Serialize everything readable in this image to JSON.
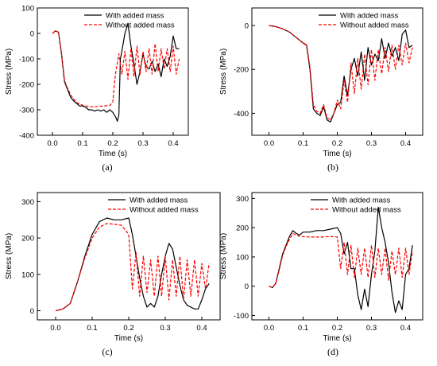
{
  "legend": {
    "with_label": "With added mass",
    "without_label": "Without added mass"
  },
  "colors": {
    "with": "#000000",
    "without": "#ff0000",
    "axis": "#000000"
  },
  "chart_data": [
    {
      "type": "line",
      "caption": "(a)",
      "xlabel": "Time (s)",
      "ylabel": "Stress (MPa)",
      "xlim": [
        -0.05,
        0.45
      ],
      "ylim": [
        -400,
        100
      ],
      "xticks": [
        0.0,
        0.1,
        0.2,
        0.3,
        0.4
      ],
      "xtick_labels": [
        "0.0",
        "0.1",
        "0.2",
        "0.3",
        "0.4"
      ],
      "yticks": [
        -400,
        -300,
        -200,
        -100,
        0,
        100
      ],
      "ytick_labels": [
        "-400",
        "-300",
        "-200",
        "-100",
        "0",
        "100"
      ],
      "legend_position": "top-right",
      "grid": false,
      "series": [
        {
          "name": "With added mass",
          "style": "solid",
          "x": [
            0.0,
            0.01,
            0.02,
            0.03,
            0.04,
            0.05,
            0.06,
            0.07,
            0.08,
            0.09,
            0.1,
            0.11,
            0.12,
            0.13,
            0.14,
            0.15,
            0.16,
            0.17,
            0.18,
            0.19,
            0.2,
            0.21,
            0.215,
            0.22,
            0.225,
            0.23,
            0.24,
            0.25,
            0.26,
            0.27,
            0.28,
            0.29,
            0.3,
            0.31,
            0.32,
            0.33,
            0.34,
            0.35,
            0.36,
            0.37,
            0.38,
            0.39,
            0.4,
            0.41,
            0.42
          ],
          "y": [
            0,
            10,
            5,
            -80,
            -190,
            -220,
            -250,
            -265,
            -275,
            -285,
            -285,
            -290,
            -300,
            -300,
            -305,
            -300,
            -305,
            -300,
            -310,
            -300,
            -310,
            -330,
            -345,
            -320,
            -100,
            -70,
            0,
            40,
            -50,
            -120,
            -200,
            -150,
            -80,
            -130,
            -140,
            -110,
            -150,
            -120,
            -170,
            -100,
            -130,
            -90,
            -10,
            -60,
            -60
          ]
        },
        {
          "name": "Without added mass",
          "style": "dashed",
          "x": [
            0.0,
            0.01,
            0.02,
            0.03,
            0.04,
            0.05,
            0.06,
            0.07,
            0.08,
            0.09,
            0.1,
            0.11,
            0.12,
            0.13,
            0.14,
            0.15,
            0.16,
            0.17,
            0.18,
            0.19,
            0.2,
            0.205,
            0.21,
            0.22,
            0.23,
            0.24,
            0.25,
            0.26,
            0.27,
            0.28,
            0.29,
            0.3,
            0.31,
            0.32,
            0.33,
            0.34,
            0.35,
            0.36,
            0.37,
            0.38,
            0.39,
            0.4,
            0.41,
            0.42
          ],
          "y": [
            0,
            10,
            5,
            -80,
            -185,
            -215,
            -240,
            -258,
            -270,
            -278,
            -282,
            -285,
            -287,
            -288,
            -288,
            -287,
            -286,
            -285,
            -284,
            -283,
            -270,
            -200,
            -150,
            -80,
            -160,
            -70,
            -180,
            -60,
            -170,
            -50,
            -160,
            -70,
            -150,
            -60,
            -160,
            -40,
            -150,
            -60,
            -140,
            -60,
            -150,
            -50,
            -160,
            -100
          ]
        }
      ]
    },
    {
      "type": "line",
      "caption": "(b)",
      "xlabel": "Time (s)",
      "ylabel": "Stress (MPa)",
      "xlim": [
        -0.05,
        0.45
      ],
      "ylim": [
        -500,
        80
      ],
      "xticks": [
        0.0,
        0.1,
        0.2,
        0.3,
        0.4
      ],
      "xtick_labels": [
        "0.0",
        "0.1",
        "0.2",
        "0.3",
        "0.4"
      ],
      "yticks": [
        -400,
        -200,
        0
      ],
      "ytick_labels": [
        "-400",
        "-200",
        "0"
      ],
      "legend_position": "top-right",
      "grid": false,
      "series": [
        {
          "name": "With added mass",
          "style": "solid",
          "x": [
            0.0,
            0.02,
            0.04,
            0.06,
            0.08,
            0.1,
            0.11,
            0.12,
            0.13,
            0.14,
            0.15,
            0.16,
            0.17,
            0.18,
            0.19,
            0.2,
            0.21,
            0.22,
            0.23,
            0.24,
            0.25,
            0.26,
            0.27,
            0.28,
            0.29,
            0.3,
            0.31,
            0.32,
            0.33,
            0.34,
            0.35,
            0.36,
            0.37,
            0.38,
            0.39,
            0.4,
            0.41,
            0.42
          ],
          "y": [
            0,
            -5,
            -15,
            -30,
            -55,
            -80,
            -90,
            -200,
            -380,
            -400,
            -410,
            -370,
            -430,
            -440,
            -400,
            -360,
            -350,
            -230,
            -320,
            -200,
            -150,
            -230,
            -120,
            -250,
            -100,
            -180,
            -130,
            -160,
            -60,
            -150,
            -80,
            -140,
            -100,
            -160,
            -40,
            -20,
            -100,
            -90
          ]
        },
        {
          "name": "Without added mass",
          "style": "dashed",
          "x": [
            0.0,
            0.02,
            0.04,
            0.06,
            0.08,
            0.1,
            0.11,
            0.12,
            0.13,
            0.14,
            0.15,
            0.16,
            0.17,
            0.18,
            0.19,
            0.2,
            0.21,
            0.22,
            0.23,
            0.24,
            0.25,
            0.26,
            0.27,
            0.28,
            0.29,
            0.3,
            0.31,
            0.32,
            0.33,
            0.34,
            0.35,
            0.36,
            0.37,
            0.38,
            0.39,
            0.4,
            0.41,
            0.42
          ],
          "y": [
            0,
            -5,
            -15,
            -30,
            -55,
            -80,
            -85,
            -190,
            -360,
            -390,
            -400,
            -360,
            -420,
            -430,
            -400,
            -340,
            -380,
            -250,
            -350,
            -170,
            -310,
            -150,
            -290,
            -130,
            -270,
            -110,
            -250,
            -110,
            -220,
            -100,
            -210,
            -90,
            -200,
            -90,
            -180,
            -80,
            -170,
            -100
          ]
        }
      ]
    },
    {
      "type": "line",
      "caption": "(c)",
      "xlabel": "Time (s)",
      "ylabel": "Stress (MPa)",
      "xlim": [
        -0.05,
        0.45
      ],
      "ylim": [
        -25,
        325
      ],
      "xticks": [
        0.0,
        0.1,
        0.2,
        0.3,
        0.4
      ],
      "xtick_labels": [
        "0.0",
        "0.1",
        "0.2",
        "0.3",
        "0.4"
      ],
      "yticks": [
        0,
        100,
        200,
        300
      ],
      "ytick_labels": [
        "0",
        "100",
        "200",
        "300"
      ],
      "legend_position": "top-right",
      "grid": false,
      "series": [
        {
          "name": "With added mass",
          "style": "solid",
          "x": [
            0.0,
            0.02,
            0.04,
            0.06,
            0.08,
            0.1,
            0.12,
            0.14,
            0.16,
            0.18,
            0.2,
            0.21,
            0.22,
            0.23,
            0.24,
            0.25,
            0.26,
            0.27,
            0.28,
            0.29,
            0.3,
            0.31,
            0.32,
            0.33,
            0.34,
            0.35,
            0.36,
            0.37,
            0.38,
            0.39,
            0.4,
            0.41,
            0.42
          ],
          "y": [
            0,
            5,
            20,
            80,
            150,
            210,
            245,
            255,
            250,
            250,
            255,
            210,
            150,
            90,
            40,
            10,
            20,
            10,
            40,
            100,
            150,
            185,
            170,
            120,
            70,
            30,
            15,
            10,
            5,
            5,
            30,
            60,
            75
          ]
        },
        {
          "name": "Without added mass",
          "style": "dashed",
          "x": [
            0.0,
            0.02,
            0.04,
            0.06,
            0.08,
            0.1,
            0.12,
            0.14,
            0.16,
            0.18,
            0.2,
            0.21,
            0.22,
            0.23,
            0.24,
            0.25,
            0.26,
            0.27,
            0.28,
            0.29,
            0.3,
            0.31,
            0.32,
            0.33,
            0.34,
            0.35,
            0.36,
            0.37,
            0.38,
            0.39,
            0.4,
            0.41,
            0.42
          ],
          "y": [
            0,
            5,
            20,
            80,
            145,
            200,
            230,
            240,
            238,
            235,
            210,
            60,
            160,
            40,
            150,
            50,
            140,
            40,
            150,
            40,
            150,
            30,
            140,
            40,
            150,
            30,
            140,
            40,
            140,
            40,
            130,
            60,
            130
          ]
        }
      ]
    },
    {
      "type": "line",
      "caption": "(d)",
      "xlabel": "Time (s)",
      "ylabel": "Stress (MPa)",
      "xlim": [
        -0.05,
        0.45
      ],
      "ylim": [
        -115,
        320
      ],
      "xticks": [
        0.0,
        0.1,
        0.2,
        0.3,
        0.4
      ],
      "xtick_labels": [
        "0.0",
        "0.1",
        "0.2",
        "0.3",
        "0.4"
      ],
      "yticks": [
        -100,
        0,
        100,
        200,
        300
      ],
      "ytick_labels": [
        "-100",
        "0",
        "100",
        "200",
        "300"
      ],
      "legend_position": "top-right",
      "grid": false,
      "series": [
        {
          "name": "With added mass",
          "style": "solid",
          "x": [
            0.0,
            0.01,
            0.02,
            0.03,
            0.04,
            0.05,
            0.06,
            0.07,
            0.08,
            0.09,
            0.1,
            0.12,
            0.14,
            0.16,
            0.18,
            0.2,
            0.21,
            0.22,
            0.23,
            0.24,
            0.25,
            0.26,
            0.27,
            0.28,
            0.29,
            0.3,
            0.31,
            0.32,
            0.33,
            0.34,
            0.35,
            0.36,
            0.37,
            0.38,
            0.39,
            0.4,
            0.41,
            0.42
          ],
          "y": [
            0,
            -5,
            10,
            60,
            110,
            140,
            170,
            190,
            180,
            175,
            185,
            185,
            190,
            190,
            195,
            200,
            180,
            110,
            150,
            60,
            60,
            -30,
            -80,
            -10,
            -70,
            40,
            120,
            270,
            200,
            150,
            80,
            -20,
            -90,
            -50,
            -80,
            40,
            60,
            140
          ]
        },
        {
          "name": "Without added mass",
          "style": "dashed",
          "x": [
            0.0,
            0.01,
            0.02,
            0.03,
            0.04,
            0.05,
            0.06,
            0.07,
            0.08,
            0.09,
            0.1,
            0.12,
            0.14,
            0.16,
            0.18,
            0.2,
            0.21,
            0.22,
            0.23,
            0.24,
            0.25,
            0.26,
            0.27,
            0.28,
            0.29,
            0.3,
            0.31,
            0.32,
            0.33,
            0.34,
            0.35,
            0.36,
            0.37,
            0.38,
            0.39,
            0.4,
            0.41,
            0.42
          ],
          "y": [
            0,
            -5,
            10,
            55,
            105,
            135,
            160,
            180,
            175,
            170,
            170,
            168,
            168,
            168,
            170,
            168,
            60,
            150,
            40,
            140,
            30,
            130,
            40,
            130,
            30,
            140,
            30,
            130,
            40,
            130,
            20,
            120,
            40,
            130,
            30,
            130,
            40,
            120
          ]
        }
      ]
    }
  ]
}
